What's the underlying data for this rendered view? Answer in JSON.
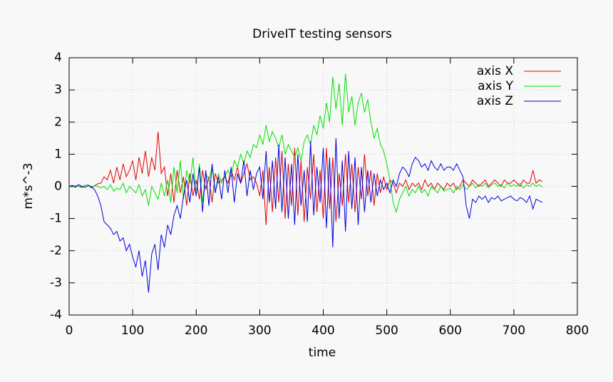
{
  "chart_data": {
    "type": "line",
    "title": "DriveIT testing sensors",
    "x_label": "time",
    "y_label": "m*s^-3",
    "xlim": [
      0,
      800
    ],
    "xticks": [
      0,
      100,
      200,
      300,
      400,
      500,
      600,
      700,
      800
    ],
    "ylim": [
      -4,
      4
    ],
    "yticks": [
      -4,
      -3,
      -2,
      -1,
      0,
      1,
      2,
      3,
      4
    ],
    "grid": true,
    "legend": "top-right",
    "x": [
      0,
      5,
      10,
      15,
      20,
      25,
      30,
      35,
      40,
      45,
      50,
      55,
      60,
      65,
      70,
      75,
      80,
      85,
      90,
      95,
      100,
      105,
      110,
      115,
      120,
      125,
      130,
      135,
      140,
      145,
      150,
      155,
      160,
      165,
      170,
      175,
      180,
      185,
      190,
      195,
      200,
      205,
      210,
      215,
      220,
      225,
      230,
      235,
      240,
      245,
      250,
      255,
      260,
      265,
      270,
      275,
      280,
      285,
      290,
      295,
      300,
      305,
      310,
      315,
      320,
      325,
      330,
      335,
      340,
      345,
      350,
      355,
      360,
      365,
      370,
      375,
      380,
      385,
      390,
      395,
      400,
      405,
      410,
      415,
      420,
      425,
      430,
      435,
      440,
      445,
      450,
      455,
      460,
      465,
      470,
      475,
      480,
      485,
      490,
      495,
      500,
      505,
      510,
      515,
      520,
      525,
      530,
      535,
      540,
      545,
      550,
      555,
      560,
      565,
      570,
      575,
      580,
      585,
      590,
      595,
      600,
      605,
      610,
      615,
      620,
      625,
      630,
      635,
      640,
      645,
      650,
      655,
      660,
      665,
      670,
      675,
      680,
      685,
      690,
      695,
      700,
      705,
      710,
      715,
      720,
      725,
      730,
      735,
      740,
      745
    ],
    "series": [
      {
        "name": "axis X",
        "color": "#e00000",
        "values": [
          0,
          0.02,
          -0.03,
          0.05,
          -0.02,
          0.03,
          0.04,
          -0.05,
          0.02,
          0.08,
          0.1,
          0.3,
          0.2,
          0.5,
          0.1,
          0.6,
          0.2,
          0.7,
          0.3,
          0.5,
          0.8,
          0.2,
          0.9,
          0.4,
          1.1,
          0.3,
          0.9,
          0.5,
          1.7,
          0.4,
          0.6,
          -0.3,
          0.4,
          -0.5,
          0.5,
          -0.2,
          0.3,
          -0.6,
          0.4,
          -0.3,
          0.2,
          -0.4,
          0.5,
          -0.1,
          0.3,
          -0.5,
          0.4,
          0.1,
          0.2,
          0.3,
          0.1,
          0.5,
          0.2,
          0.6,
          0.1,
          0.4,
          0.7,
          0.2,
          0.3,
          0.1,
          -0.3,
          0.5,
          -1.2,
          0.6,
          -0.8,
          0.9,
          -0.5,
          1.1,
          -1.0,
          0.7,
          -0.6,
          1.2,
          -0.9,
          0.8,
          -1.1,
          0.6,
          -0.4,
          1.0,
          -0.8,
          0.5,
          -1.0,
          1.2,
          -0.7,
          0.9,
          -1.1,
          0.4,
          -0.6,
          1.0,
          -0.5,
          0.7,
          -0.8,
          0.6,
          -0.4,
          1.0,
          -0.3,
          0.5,
          -0.6,
          0.4,
          -0.2,
          0.3,
          -0.1,
          0.2,
          0.1,
          -0.2,
          0.1,
          0.0,
          0.2,
          -0.1,
          0.1,
          0.0,
          0.1,
          -0.1,
          0.2,
          0.0,
          0.1,
          -0.1,
          0.1,
          0.0,
          -0.1,
          0.1,
          0.0,
          0.1,
          -0.1,
          0.0,
          0.2,
          0.1,
          0.0,
          0.2,
          0.1,
          0.0,
          0.1,
          0.2,
          0.0,
          0.1,
          0.2,
          0.1,
          0.0,
          0.2,
          0.1,
          0.1,
          0.2,
          0.1,
          0.0,
          0.2,
          0.1,
          0.1,
          0.5,
          0.1,
          0.2,
          0.15
        ]
      },
      {
        "name": "axis Y",
        "color": "#00e000",
        "values": [
          0,
          -0.02,
          0.03,
          0,
          -0.04,
          0.02,
          0.05,
          -0.03,
          0.02,
          0,
          -0.05,
          0,
          -0.1,
          0.05,
          -0.15,
          -0.05,
          -0.1,
          0.1,
          -0.2,
          0,
          -0.1,
          -0.2,
          0.05,
          -0.3,
          -0.1,
          -0.6,
          0,
          -0.2,
          -0.4,
          0.1,
          -0.3,
          0.2,
          -0.5,
          0.6,
          -0.2,
          0.8,
          -0.4,
          0.5,
          0.1,
          0.9,
          -0.3,
          0.7,
          -0.5,
          0.4,
          0.2,
          0.6,
          -0.2,
          0.4,
          0.1,
          0.3,
          0.5,
          0.3,
          0.8,
          0.6,
          1.0,
          0.7,
          1.1,
          0.9,
          1.3,
          1.2,
          1.6,
          1.3,
          1.9,
          1.4,
          1.7,
          1.5,
          1.2,
          1.6,
          1.0,
          1.3,
          1.1,
          0.9,
          1.2,
          0.8,
          1.4,
          1.6,
          1.3,
          1.9,
          1.6,
          2.2,
          1.8,
          2.6,
          2.0,
          3.4,
          2.4,
          3.2,
          1.9,
          3.5,
          2.3,
          2.8,
          1.9,
          2.6,
          2.9,
          2.3,
          2.7,
          2.0,
          1.5,
          1.8,
          1.3,
          1.1,
          0.7,
          0.2,
          -0.5,
          -0.8,
          -0.4,
          -0.2,
          0.0,
          -0.3,
          -0.1,
          -0.2,
          0.0,
          -0.2,
          -0.1,
          -0.3,
          0.0,
          -0.1,
          -0.2,
          0.0,
          -0.15,
          -0.1,
          -0.05,
          -0.2,
          0.0,
          -0.1,
          0.05,
          -0.1,
          0.0,
          0.1,
          -0.05,
          0.05,
          0.0,
          0.1,
          -0.05,
          0.05,
          0.1,
          0.0,
          0.05,
          -0.05,
          0.1,
          0.0,
          0.05,
          0.0,
          0.1,
          -0.05,
          0.05,
          0.0,
          0.1,
          0.0,
          0.05,
          -0.02
        ]
      },
      {
        "name": "axis Z",
        "color": "#0000e0",
        "values": [
          0,
          0.03,
          -0.02,
          0.05,
          0,
          -0.03,
          0.02,
          0,
          -0.1,
          -0.3,
          -0.6,
          -1.1,
          -1.2,
          -1.3,
          -1.5,
          -1.4,
          -1.7,
          -1.6,
          -2.0,
          -1.8,
          -2.2,
          -2.5,
          -2.0,
          -2.8,
          -2.3,
          -3.3,
          -2.1,
          -1.8,
          -2.6,
          -1.5,
          -1.9,
          -1.2,
          -1.5,
          -0.9,
          -0.6,
          -1.0,
          -0.3,
          0.2,
          -0.5,
          0.4,
          -0.3,
          0.6,
          -0.8,
          0.5,
          -0.6,
          0.7,
          -0.2,
          0.3,
          -0.4,
          0.5,
          -0.2,
          0.6,
          -0.5,
          0.4,
          0.1,
          0.8,
          -0.3,
          0.5,
          -0.1,
          0.4,
          0.6,
          -0.4,
          1.1,
          -0.5,
          0.8,
          -0.7,
          1.3,
          -0.8,
          0.9,
          -1.0,
          0.7,
          -1.2,
          1.0,
          -0.6,
          0.5,
          -1.1,
          1.4,
          -0.9,
          0.6,
          -0.5,
          1.2,
          -1.3,
          0.9,
          -1.9,
          1.5,
          -1.0,
          0.8,
          -1.4,
          1.1,
          -0.7,
          0.9,
          -1.2,
          0.6,
          -0.8,
          0.5,
          -0.5,
          0.4,
          -0.3,
          0.2,
          -0.1,
          0.1,
          -0.2,
          0.2,
          0.0,
          0.4,
          0.6,
          0.5,
          0.3,
          0.7,
          0.9,
          0.8,
          0.6,
          0.7,
          0.5,
          0.8,
          0.6,
          0.5,
          0.7,
          0.5,
          0.6,
          0.6,
          0.5,
          0.7,
          0.5,
          0.3,
          -0.6,
          -1.0,
          -0.4,
          -0.5,
          -0.3,
          -0.4,
          -0.3,
          -0.5,
          -0.35,
          -0.4,
          -0.3,
          -0.45,
          -0.4,
          -0.35,
          -0.3,
          -0.4,
          -0.45,
          -0.35,
          -0.4,
          -0.5,
          -0.3,
          -0.7,
          -0.4,
          -0.45,
          -0.5
        ]
      }
    ]
  }
}
